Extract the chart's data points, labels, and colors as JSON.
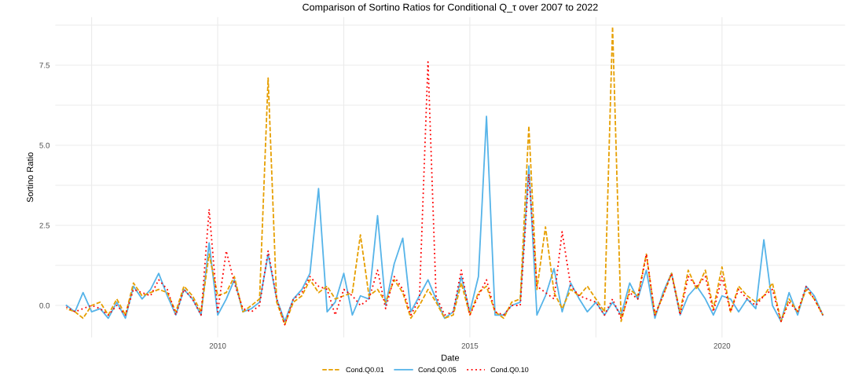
{
  "chart_data": {
    "type": "line",
    "title": "Comparison of Sortino Ratios for Conditional Q_τ over 2007 to 2022",
    "xlabel": "Date",
    "ylabel": "Sortino Ratio",
    "x": [
      2007.0,
      2007.17,
      2007.33,
      2007.5,
      2007.67,
      2007.83,
      2008.0,
      2008.17,
      2008.33,
      2008.5,
      2008.67,
      2008.83,
      2009.0,
      2009.17,
      2009.33,
      2009.5,
      2009.67,
      2009.83,
      2010.0,
      2010.17,
      2010.33,
      2010.5,
      2010.67,
      2010.83,
      2011.0,
      2011.17,
      2011.33,
      2011.5,
      2011.67,
      2011.83,
      2012.0,
      2012.17,
      2012.33,
      2012.5,
      2012.67,
      2012.83,
      2013.0,
      2013.17,
      2013.33,
      2013.5,
      2013.67,
      2013.83,
      2014.0,
      2014.17,
      2014.33,
      2014.5,
      2014.67,
      2014.83,
      2015.0,
      2015.17,
      2015.33,
      2015.5,
      2015.67,
      2015.83,
      2016.0,
      2016.17,
      2016.33,
      2016.5,
      2016.67,
      2016.83,
      2017.0,
      2017.17,
      2017.33,
      2017.5,
      2017.67,
      2017.83,
      2018.0,
      2018.17,
      2018.33,
      2018.5,
      2018.67,
      2018.83,
      2019.0,
      2019.17,
      2019.33,
      2019.5,
      2019.67,
      2019.83,
      2020.0,
      2020.17,
      2020.33,
      2020.5,
      2020.67,
      2020.83,
      2021.0,
      2021.17,
      2021.33,
      2021.5,
      2021.67,
      2021.83,
      2022.0
    ],
    "series": [
      {
        "name": "Cond.Q0.01",
        "color": "#e69f00",
        "line_style": "dashed",
        "values": [
          -0.1,
          -0.2,
          -0.4,
          0.0,
          0.1,
          -0.3,
          0.2,
          -0.3,
          0.7,
          0.3,
          0.4,
          0.5,
          0.4,
          -0.2,
          0.6,
          0.3,
          -0.2,
          1.6,
          0.3,
          0.4,
          0.9,
          -0.2,
          0.0,
          0.2,
          7.1,
          0.1,
          -0.6,
          0.1,
          0.3,
          0.8,
          0.4,
          0.6,
          0.2,
          0.3,
          0.4,
          2.2,
          0.3,
          0.5,
          0.1,
          0.8,
          0.4,
          -0.4,
          0.0,
          0.5,
          0.1,
          -0.4,
          -0.3,
          0.7,
          -0.3,
          0.4,
          0.6,
          -0.2,
          -0.4,
          0.1,
          0.2,
          5.6,
          0.5,
          2.45,
          0.4,
          -0.1,
          0.5,
          0.3,
          0.6,
          0.2,
          -0.2,
          8.7,
          -0.5,
          0.5,
          0.3,
          1.6,
          -0.3,
          0.3,
          1.0,
          -0.2,
          1.1,
          0.5,
          1.1,
          -0.1,
          1.2,
          -0.2,
          0.6,
          0.3,
          0.1,
          0.3,
          0.7,
          -0.5,
          0.2,
          -0.2,
          0.5,
          0.2,
          -0.3
        ]
      },
      {
        "name": "Cond.Q0.05",
        "color": "#56b4e9",
        "line_style": "solid",
        "values": [
          0.0,
          -0.2,
          0.4,
          -0.2,
          -0.1,
          -0.4,
          0.1,
          -0.4,
          0.6,
          0.2,
          0.5,
          1.0,
          0.3,
          -0.3,
          0.5,
          0.2,
          -0.3,
          1.95,
          -0.3,
          0.2,
          0.8,
          -0.2,
          -0.1,
          0.1,
          1.6,
          0.2,
          -0.5,
          0.2,
          0.5,
          1.0,
          3.65,
          -0.2,
          0.1,
          1.0,
          -0.3,
          0.3,
          0.2,
          2.8,
          0.0,
          1.3,
          2.1,
          -0.2,
          0.3,
          0.8,
          0.2,
          -0.4,
          -0.2,
          0.9,
          -0.2,
          0.9,
          5.9,
          -0.3,
          -0.3,
          0.0,
          0.1,
          4.35,
          -0.3,
          0.3,
          1.15,
          -0.2,
          0.7,
          0.2,
          -0.2,
          0.1,
          -0.3,
          0.1,
          -0.3,
          0.7,
          0.2,
          1.1,
          -0.4,
          0.4,
          1.0,
          -0.3,
          0.3,
          0.6,
          0.2,
          -0.3,
          0.3,
          0.2,
          -0.2,
          0.2,
          -0.1,
          2.05,
          0.0,
          -0.5,
          0.4,
          -0.3,
          0.6,
          0.3,
          -0.3
        ]
      },
      {
        "name": "Cond.Q0.10",
        "color": "#ff0000",
        "line_style": "dotted",
        "values": [
          -0.05,
          -0.2,
          -0.1,
          0.0,
          -0.1,
          -0.3,
          0.0,
          -0.3,
          0.5,
          0.4,
          0.3,
          0.8,
          0.5,
          -0.3,
          0.5,
          0.2,
          -0.3,
          3.0,
          -0.2,
          1.7,
          0.7,
          -0.1,
          -0.2,
          0.0,
          1.7,
          0.2,
          -0.6,
          0.2,
          0.4,
          0.9,
          0.6,
          0.5,
          -0.3,
          0.5,
          0.3,
          0.0,
          0.2,
          1.1,
          -0.1,
          0.9,
          0.5,
          -0.3,
          0.2,
          7.6,
          0.3,
          -0.3,
          -0.2,
          1.1,
          -0.3,
          0.3,
          0.8,
          -0.2,
          -0.3,
          0.0,
          0.0,
          4.1,
          0.6,
          0.4,
          0.2,
          2.3,
          0.6,
          0.3,
          0.2,
          0.1,
          -0.3,
          0.2,
          -0.4,
          0.4,
          0.2,
          1.6,
          -0.3,
          0.3,
          1.0,
          -0.3,
          0.9,
          0.6,
          0.9,
          -0.2,
          0.9,
          -0.2,
          0.5,
          0.2,
          0.0,
          0.3,
          0.5,
          -0.5,
          0.1,
          -0.2,
          0.6,
          0.2,
          -0.3
        ]
      }
    ],
    "xlim": [
      2006.78,
      2022.44
    ],
    "ylim": [
      -1.0,
      9.0
    ],
    "xticks": [
      {
        "value": 2007.5,
        "label": null
      },
      2010,
      {
        "value": 2012.5,
        "label": null
      },
      2015,
      {
        "value": 2017.5,
        "label": null
      },
      2020
    ],
    "yticks": [
      {
        "value": 0,
        "label": "0.0"
      },
      {
        "value": 1.25,
        "label": null
      },
      {
        "value": 2.5,
        "label": "2.5"
      },
      {
        "value": 3.75,
        "label": null
      },
      {
        "value": 5,
        "label": "5.0"
      },
      {
        "value": 6.25,
        "label": null
      },
      {
        "value": 7.5,
        "label": "7.5"
      },
      {
        "value": 8.75,
        "label": null
      }
    ],
    "grid": true,
    "legend": "bottom",
    "marker": "none"
  }
}
